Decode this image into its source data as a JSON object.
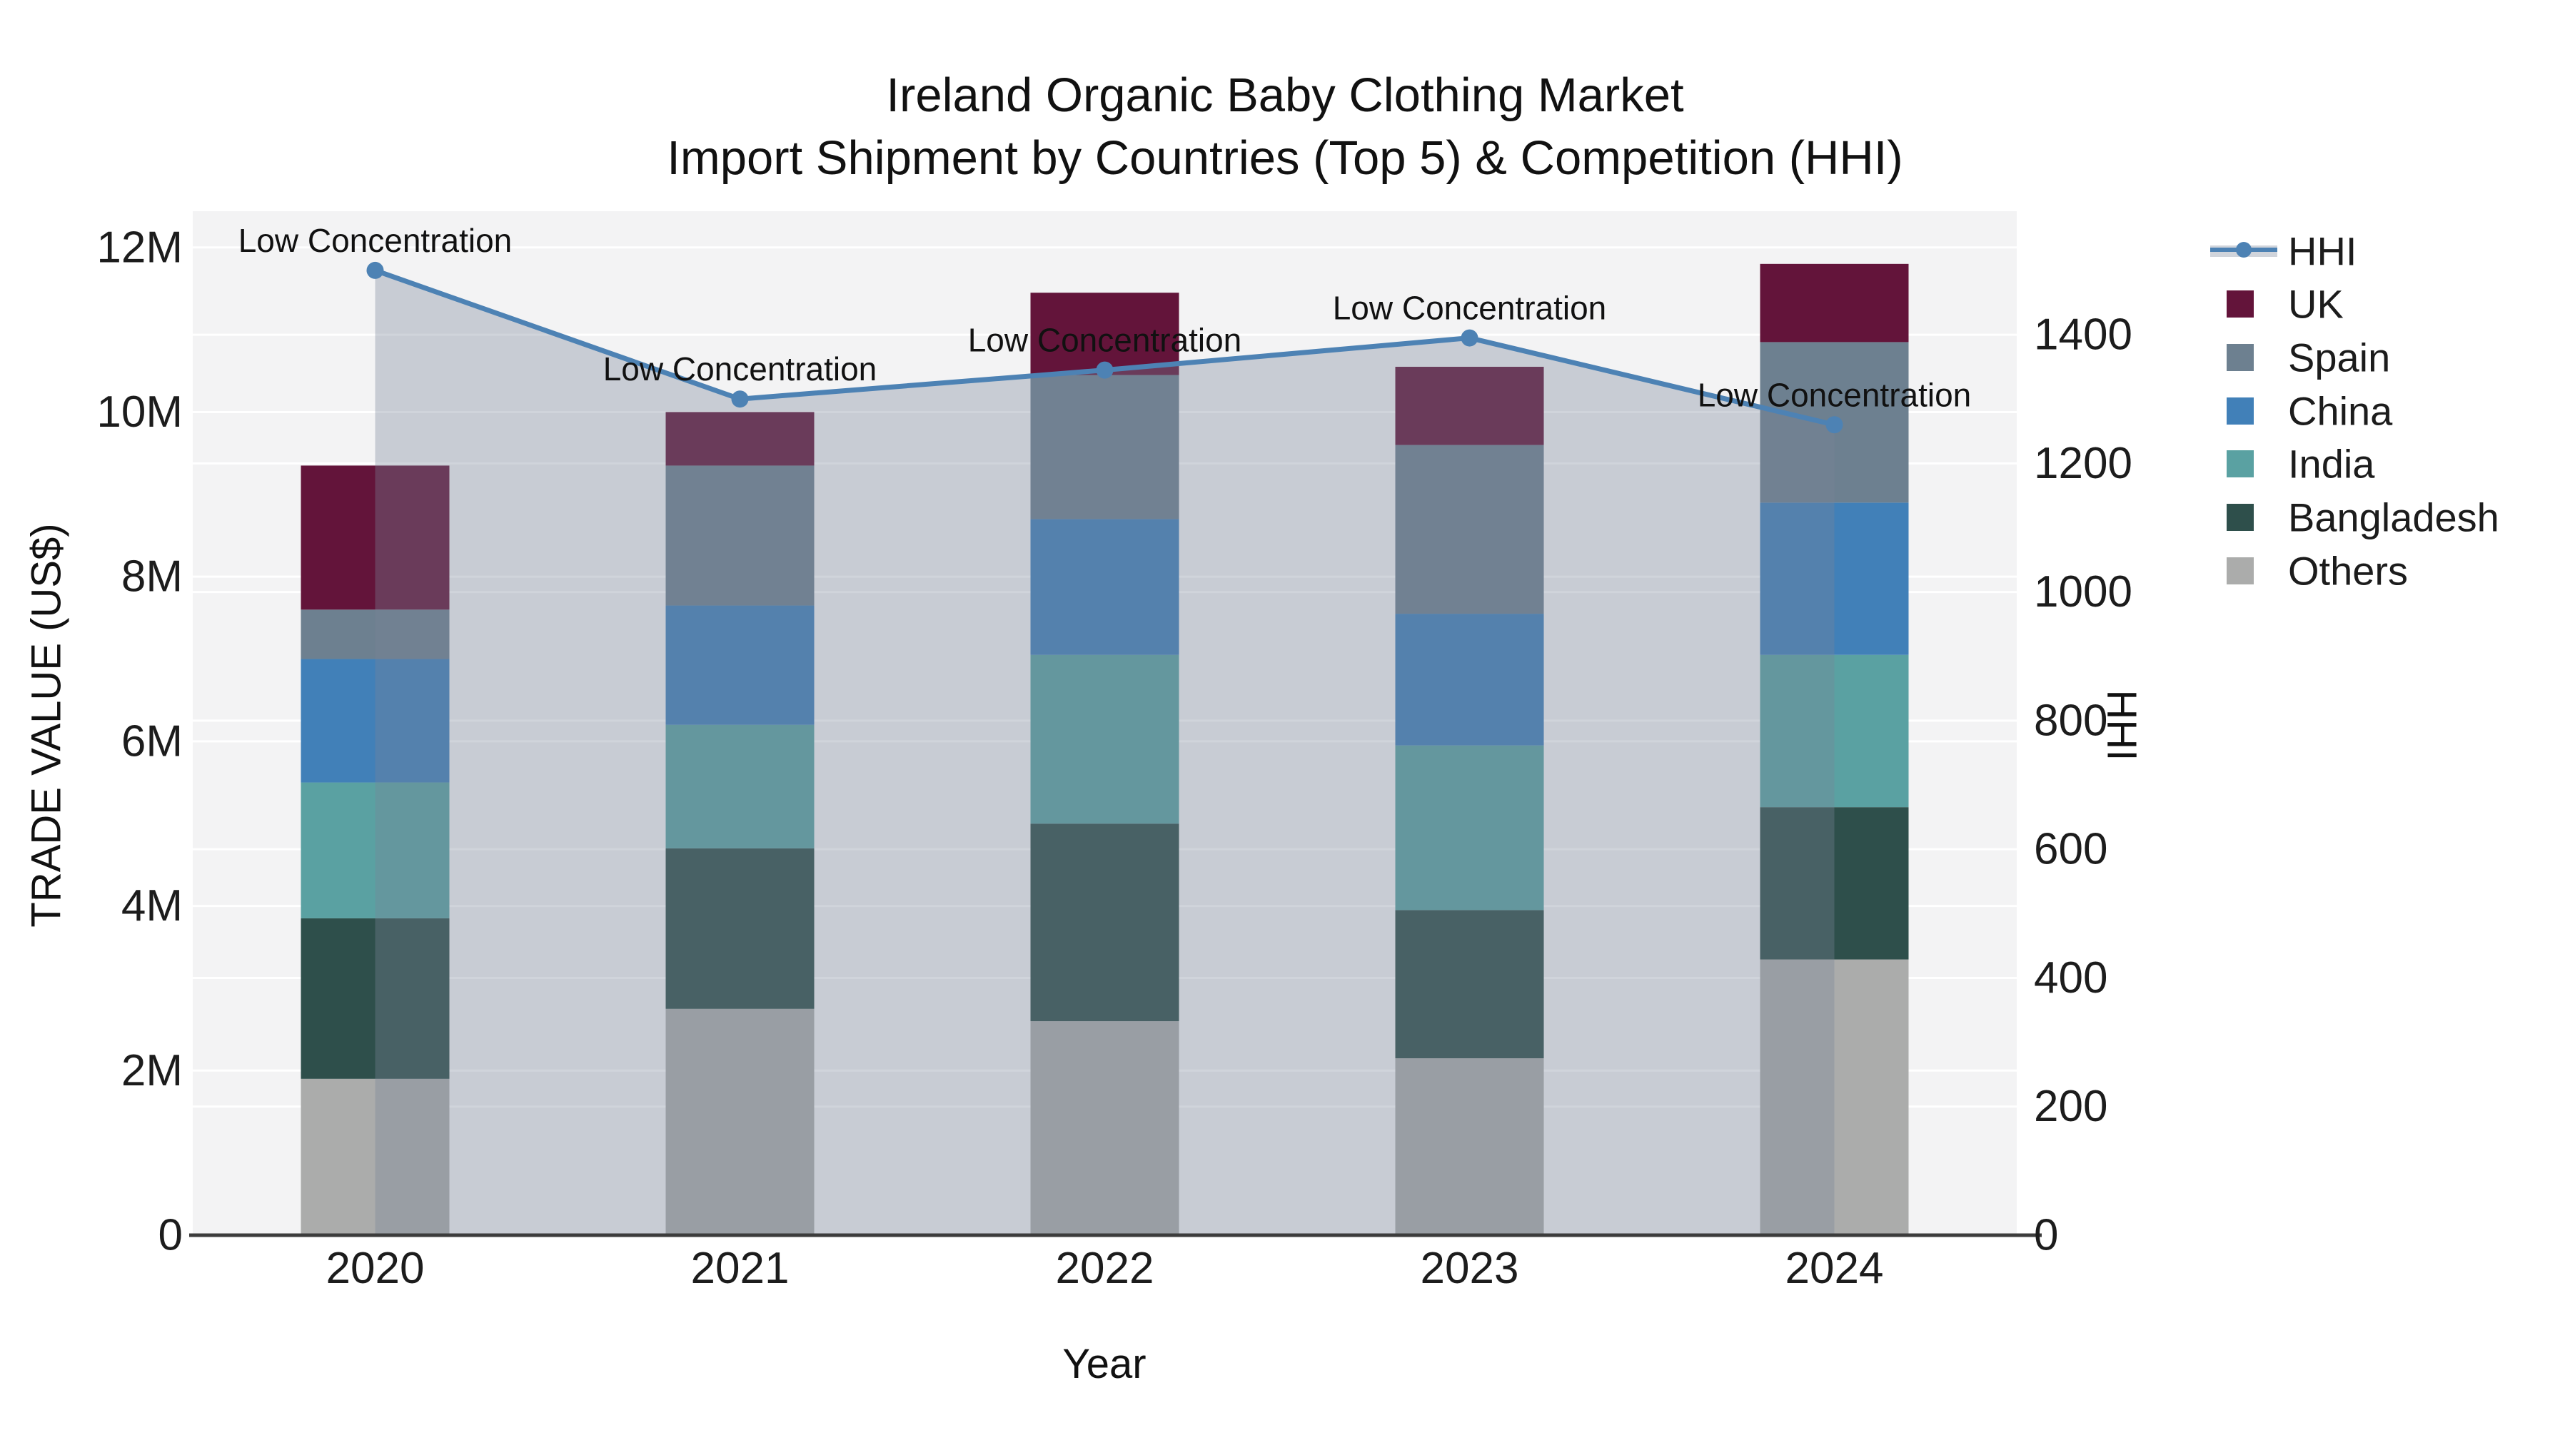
{
  "chart_data": {
    "type": "bar",
    "subtype": "stacked-bar-with-line-overlay",
    "title_line1": "Ireland Organic Baby Clothing Market",
    "title_line2": "Import Shipment by Countries (Top 5) & Competition (HHI)",
    "xlabel": "Year",
    "ylabel_left": "TRADE VALUE (US$)",
    "ylabel_right": "HHI",
    "categories": [
      "2020",
      "2021",
      "2022",
      "2023",
      "2024"
    ],
    "stack_order_bottom_to_top": [
      "Others",
      "Bangladesh",
      "India",
      "China",
      "Spain",
      "UK"
    ],
    "series": [
      {
        "name": "UK",
        "color": "#63143a",
        "values": [
          1750000,
          650000,
          1000000,
          950000,
          950000
        ]
      },
      {
        "name": "Spain",
        "color": "#6d8090",
        "values": [
          600000,
          1700000,
          1750000,
          2050000,
          1950000
        ]
      },
      {
        "name": "China",
        "color": "#4180b8",
        "values": [
          1500000,
          1450000,
          1650000,
          1600000,
          1850000
        ]
      },
      {
        "name": "India",
        "color": "#5aa1a2",
        "values": [
          1650000,
          1500000,
          2050000,
          2000000,
          1850000
        ]
      },
      {
        "name": "Bangladesh",
        "color": "#2e4f4b",
        "values": [
          1950000,
          1950000,
          2400000,
          1800000,
          1850000
        ]
      },
      {
        "name": "Others",
        "color": "#abacab",
        "values": [
          1900000,
          2750000,
          2600000,
          2150000,
          3350000
        ]
      }
    ],
    "hhi": {
      "name": "HHI",
      "values": [
        1500,
        1300,
        1345,
        1395,
        1260
      ],
      "line_color": "#4d82b4",
      "area_fill": "rgba(120,132,152,0.35)"
    },
    "annotations": [
      "Low Concentration",
      "Low Concentration",
      "Low Concentration",
      "Low Concentration",
      "Low Concentration"
    ],
    "y_left": {
      "tick_values": [
        0,
        2000000,
        4000000,
        6000000,
        8000000,
        10000000,
        12000000
      ],
      "tick_labels": [
        "0",
        "2M",
        "4M",
        "6M",
        "8M",
        "10M",
        "12M"
      ],
      "max": 12440000
    },
    "y_right": {
      "tick_values": [
        0,
        200,
        400,
        600,
        800,
        1000,
        1200,
        1400
      ],
      "tick_labels": [
        "0",
        "200",
        "400",
        "600",
        "800",
        "1000",
        "1200",
        "1400"
      ],
      "max": 1592
    },
    "legend_order": [
      "HHI",
      "UK",
      "Spain",
      "China",
      "India",
      "Bangladesh",
      "Others"
    ],
    "plot_bg": "#f3f3f4",
    "grid_color": "#ffffff",
    "axis_line_color": "#3c3c3c",
    "text_color": "#1c1c1c"
  }
}
